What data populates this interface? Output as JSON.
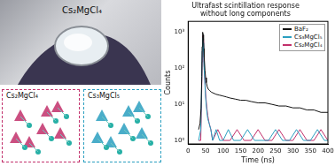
{
  "chart_data": {
    "type": "line",
    "title": [
      "Ultrafast scintillation response",
      "without long components"
    ],
    "x_label": "Time (ns)",
    "y_label": "Counts",
    "log": "y",
    "legend": "upper right",
    "grid": false,
    "xlim": [
      0,
      400
    ],
    "xticks": [
      0,
      50,
      100,
      150,
      200,
      250,
      300,
      350,
      400
    ],
    "ylim": [
      0.8,
      2000
    ],
    "yticks": [
      {
        "value": 1,
        "label": "10⁰"
      },
      {
        "value": 10,
        "label": "10¹"
      },
      {
        "value": 100,
        "label": "10²"
      },
      {
        "value": 1000,
        "label": "10³"
      }
    ],
    "series": [
      {
        "name": "BaF₂",
        "color": "#111111",
        "marker": "none",
        "line_style": "solid",
        "x": [
          30,
          34,
          37,
          39,
          40,
          41,
          42,
          43,
          44,
          45,
          46,
          48,
          50,
          52,
          55,
          58,
          62,
          66,
          70,
          80,
          90,
          100,
          110,
          120,
          135,
          150,
          165,
          180,
          200,
          220,
          240,
          260,
          280,
          300,
          320,
          340,
          360,
          380,
          400
        ],
        "values": [
          2,
          3,
          8,
          60,
          400,
          900,
          1000,
          850,
          600,
          350,
          200,
          90,
          55,
          40,
          30,
          26,
          24,
          22,
          21,
          19,
          18,
          17,
          16,
          15,
          14,
          13,
          13,
          12,
          11,
          11,
          10,
          9,
          9,
          8,
          8,
          7,
          7,
          6,
          6
        ]
      },
      {
        "name": "Cs₃MgCl₅",
        "color": "#2a9fc0",
        "marker": "none",
        "line_style": "solid",
        "x": [
          30,
          36,
          38,
          40,
          41,
          42,
          43,
          44,
          45,
          46,
          48,
          50,
          53,
          56,
          60,
          65,
          70,
          80,
          90,
          100,
          115,
          130,
          150,
          170,
          190,
          210,
          230,
          250,
          270,
          290,
          310,
          330,
          350,
          370,
          390,
          400
        ],
        "values": [
          1,
          2,
          15,
          300,
          650,
          700,
          500,
          300,
          160,
          90,
          35,
          15,
          7,
          4,
          3,
          2,
          1,
          2,
          1,
          1,
          2,
          1,
          1,
          2,
          1,
          1,
          1,
          2,
          1,
          1,
          2,
          1,
          1,
          2,
          1,
          1
        ]
      },
      {
        "name": "Cs₂MgCl₄",
        "color": "#c2306b",
        "marker": "none",
        "line_style": "solid",
        "x": [
          30,
          36,
          38,
          40,
          41,
          42,
          43,
          44,
          45,
          46,
          48,
          50,
          53,
          56,
          60,
          65,
          70,
          85,
          100,
          120,
          140,
          160,
          180,
          200,
          220,
          240,
          260,
          280,
          300,
          320,
          340,
          360,
          380,
          400
        ],
        "values": [
          1,
          1,
          8,
          150,
          500,
          800,
          600,
          350,
          200,
          110,
          45,
          20,
          9,
          5,
          3,
          2,
          1,
          2,
          1,
          1,
          2,
          1,
          1,
          2,
          1,
          1,
          2,
          1,
          1,
          2,
          1,
          1,
          2,
          1
        ]
      }
    ]
  },
  "photo": {
    "label": "Cs₂MgCl₄"
  },
  "structures": [
    {
      "label": "Cs₂MgCl₄",
      "color": "#c2306b"
    },
    {
      "label": "Cs₃MgCl₅",
      "color": "#2a9fc0"
    }
  ]
}
